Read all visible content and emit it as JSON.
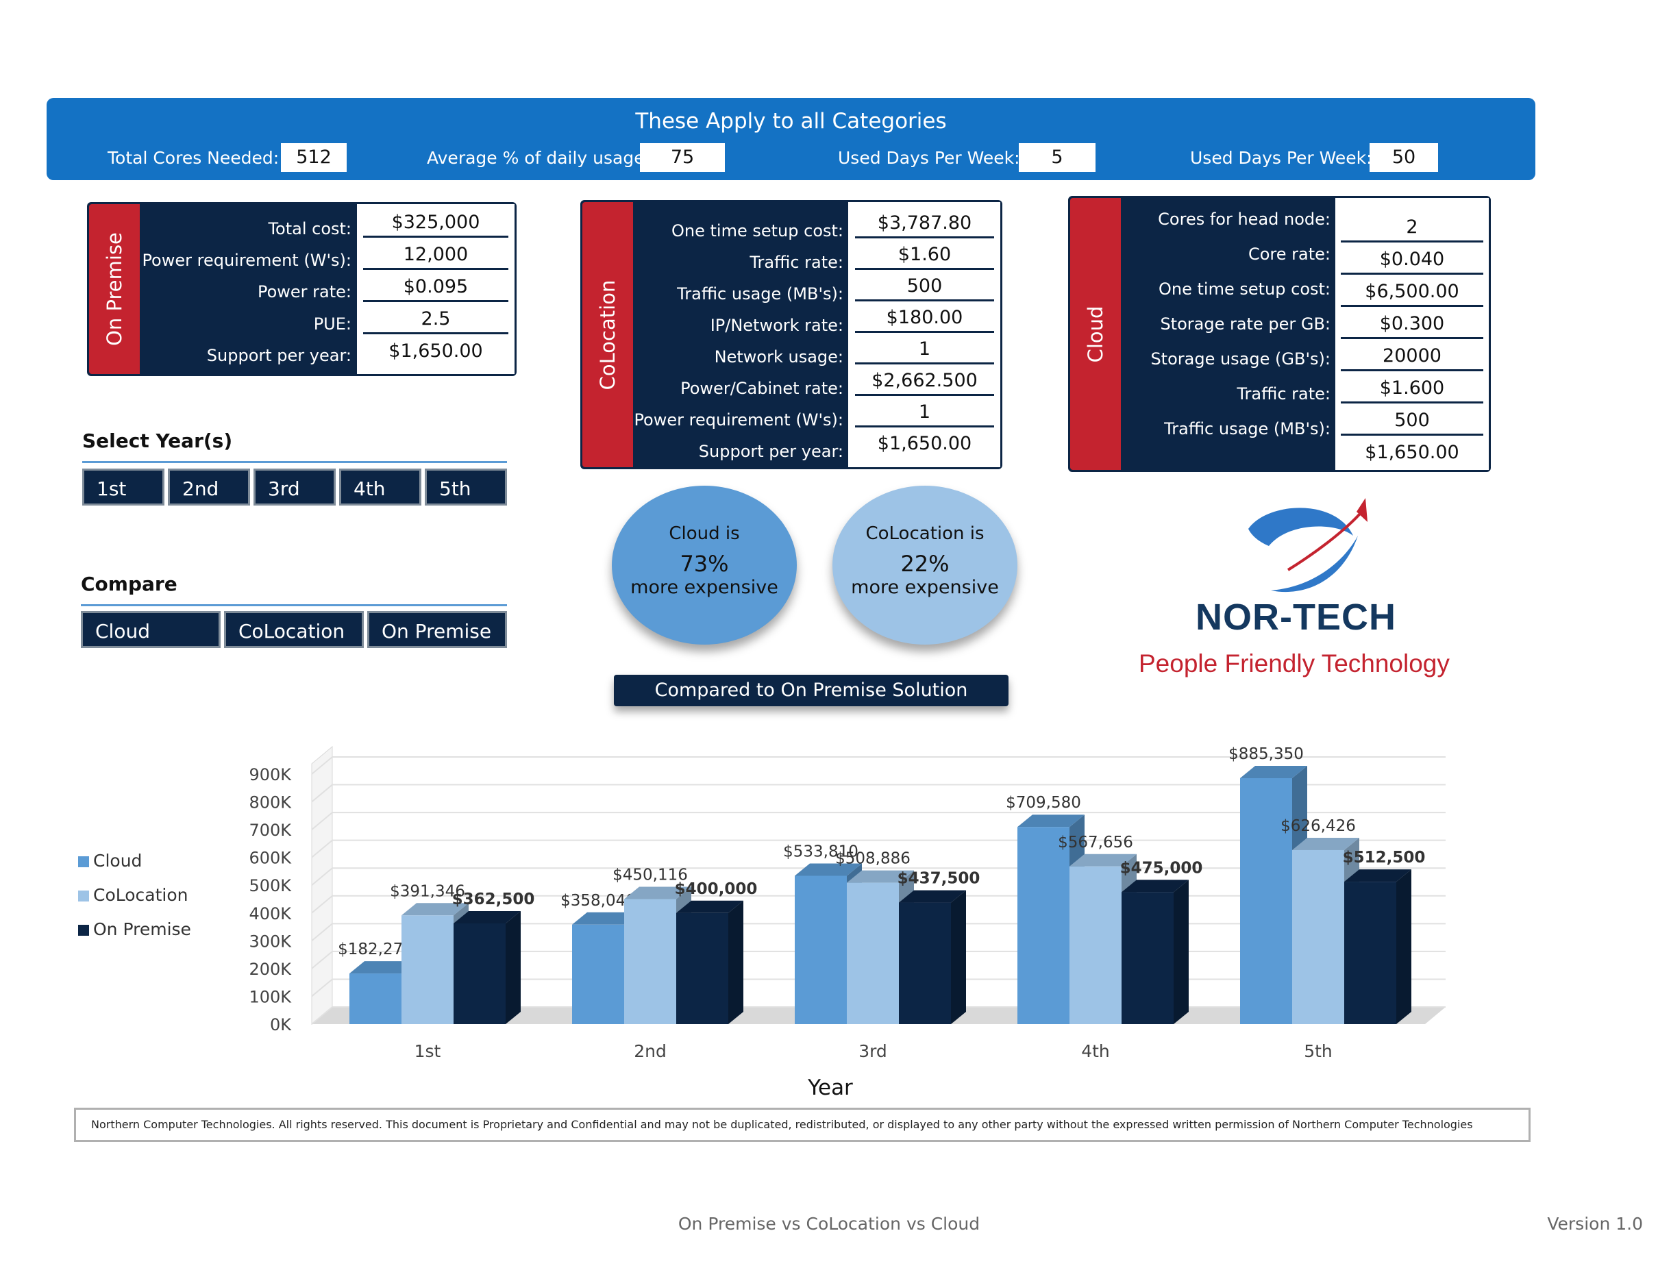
{
  "global": {
    "title": "These Apply to all Categories",
    "fields": [
      {
        "label": "Total Cores Needed:",
        "value": "512"
      },
      {
        "label": "Average % of daily usage:",
        "value": "75"
      },
      {
        "label": "Used Days Per Week:",
        "value": "5"
      },
      {
        "label": "Used Days Per Week:",
        "value": "50"
      }
    ]
  },
  "on_premise": {
    "tab": "On Premise",
    "rows": [
      {
        "label": "Total cost:",
        "value": "$325,000"
      },
      {
        "label": "Power requirement (W's):",
        "value": "12,000"
      },
      {
        "label": "Power rate:",
        "value": "$0.095"
      },
      {
        "label": "PUE:",
        "value": "2.5"
      },
      {
        "label": "Support per year:",
        "value": "$1,650.00"
      }
    ]
  },
  "colocation": {
    "tab": "CoLocation",
    "rows": [
      {
        "label": "One time setup cost:",
        "value": "$3,787.80"
      },
      {
        "label": "Traffic rate:",
        "value": "$1.60"
      },
      {
        "label": "Traffic usage (MB's):",
        "value": "500"
      },
      {
        "label": "IP/Network rate:",
        "value": "$180.00"
      },
      {
        "label": "Network usage:",
        "value": "1"
      },
      {
        "label": "Power/Cabinet rate:",
        "value": "$2,662.500"
      },
      {
        "label": "Power requirement (W's):",
        "value": "1"
      },
      {
        "label": "Support per year:",
        "value": "$1,650.00"
      }
    ]
  },
  "cloud": {
    "tab": "Cloud",
    "rows": [
      {
        "label": "Cores for head node:",
        "value": "2"
      },
      {
        "label": "Core rate:",
        "value": "$0.040"
      },
      {
        "label": "One time setup cost:",
        "value": "$6,500.00"
      },
      {
        "label": "Storage rate per GB:",
        "value": "$0.300"
      },
      {
        "label": "Storage usage (GB's):",
        "value": "20000"
      },
      {
        "label": "Traffic rate:",
        "value": "$1.600"
      },
      {
        "label": "Traffic usage (MB's):",
        "value": "500"
      },
      {
        "label": "",
        "value": "$1,650.00"
      }
    ]
  },
  "select_years": {
    "heading": "Select Year(s)",
    "buttons": [
      "1st",
      "2nd",
      "3rd",
      "4th",
      "5th"
    ]
  },
  "compare": {
    "heading": "Compare",
    "buttons": [
      "Cloud",
      "CoLocation",
      "On Premise"
    ]
  },
  "bubbles": [
    {
      "line1": "Cloud is",
      "percent": "73%",
      "line3": "more expensive",
      "color": "#5b9bd5"
    },
    {
      "line1": "CoLocation is",
      "percent": "22%",
      "line3": "more expensive",
      "color": "#9dc3e6"
    }
  ],
  "compared_label": "Compared to On Premise Solution",
  "logo": {
    "name": "NOR-TECH",
    "tagline": "People Friendly Technology"
  },
  "chart_data": {
    "type": "bar",
    "categories": [
      "1st",
      "2nd",
      "3rd",
      "4th",
      "5th"
    ],
    "xlabel": "Year",
    "ylabel": "",
    "ylim": [
      0,
      900000
    ],
    "yticks": [
      "0K",
      "100K",
      "200K",
      "300K",
      "400K",
      "500K",
      "600K",
      "700K",
      "800K",
      "900K"
    ],
    "legend_position": "left",
    "series": [
      {
        "name": "Cloud",
        "color": "#5b9bd5",
        "values": [
          182270,
          358040,
          533810,
          709580,
          885350
        ],
        "labels": [
          "$182,270",
          "$358,040",
          "$533,810",
          "$709,580",
          "$885,350"
        ]
      },
      {
        "name": "CoLocation",
        "color": "#9dc3e6",
        "values": [
          391346,
          450116,
          508886,
          567656,
          626426
        ],
        "labels": [
          "$391,346",
          "$450,116",
          "$508,886",
          "$567,656",
          "$626,426"
        ]
      },
      {
        "name": "On Premise",
        "color": "#0c2545",
        "values": [
          362500,
          400000,
          437500,
          475000,
          512500
        ],
        "labels": [
          "$362,500",
          "$400,000",
          "$437,500",
          "$475,000",
          "$512,500"
        ]
      }
    ]
  },
  "disclaimer": "Northern Computer Technologies. All rights reserved. This document is Proprietary and Confidential and may not be duplicated, redistributed, or displayed to any other party without the expressed written permission of Northern Computer Technologies",
  "footer": {
    "center": "On Premise vs CoLocation vs Cloud",
    "right": "Version 1.0"
  }
}
